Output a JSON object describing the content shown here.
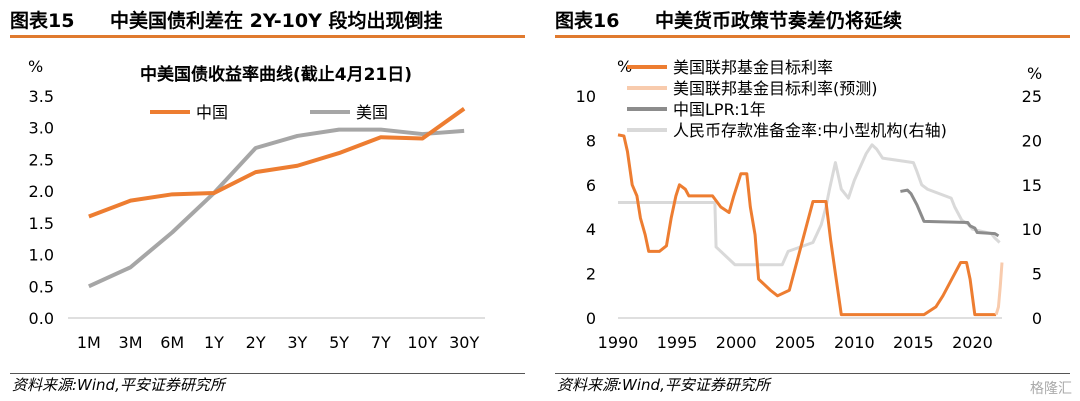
{
  "left_panel": {
    "figure_label": "图表15",
    "figure_title": "中美国债利差在 2Y-10Y 段均出现倒挂",
    "source": "资料来源:Wind,平安证券研究所"
  },
  "right_panel": {
    "figure_label": "图表16",
    "figure_title": "中美货币政策节奏差仍将延续",
    "source": "资料来源:Wind,平安证券研究所"
  },
  "watermark": "格隆汇",
  "colors": {
    "accent_orange": "#ed7d31",
    "gray": "#a6a6a6",
    "light_orange": "#f8cbad",
    "dark_gray": "#8c8c8c",
    "light_gray": "#d9d9d9"
  },
  "chart_data": [
    {
      "type": "line",
      "title": "中美国债收益率曲线(截止4月21日)",
      "ylabel": "%",
      "categories": [
        "1M",
        "3M",
        "6M",
        "1Y",
        "2Y",
        "3Y",
        "5Y",
        "7Y",
        "10Y",
        "30Y"
      ],
      "ylim": [
        0,
        3.5
      ],
      "yticks": [
        "0.0",
        "0.5",
        "1.0",
        "1.5",
        "2.0",
        "2.5",
        "3.0",
        "3.5"
      ],
      "legend_position": "top",
      "grid": false,
      "series": [
        {
          "name": "中国",
          "color": "#ed7d31",
          "values": [
            1.6,
            1.85,
            1.95,
            1.97,
            2.3,
            2.4,
            2.6,
            2.85,
            2.83,
            3.3
          ]
        },
        {
          "name": "美国",
          "color": "#a6a6a6",
          "values": [
            0.5,
            0.8,
            1.35,
            1.97,
            2.68,
            2.87,
            2.97,
            2.97,
            2.9,
            2.95
          ]
        }
      ]
    },
    {
      "type": "line",
      "ylabel_left": "%",
      "ylabel_right": "%",
      "xticks": [
        "1990",
        "1995",
        "2000",
        "2005",
        "2010",
        "2015",
        "2020"
      ],
      "xlim": [
        1990,
        2022.5
      ],
      "ylim_left": [
        0,
        10
      ],
      "yticks_left": [
        "0",
        "2",
        "4",
        "6",
        "8",
        "10"
      ],
      "ylim_right": [
        0,
        25
      ],
      "yticks_right": [
        "0",
        "5",
        "10",
        "15",
        "20",
        "25"
      ],
      "legend_position": "top-left",
      "grid": false,
      "series": [
        {
          "name": "美国联邦基金目标利率",
          "axis": "left",
          "color": "#ed7d31",
          "points": [
            [
              1990,
              8.25
            ],
            [
              1990.5,
              8.2
            ],
            [
              1990.8,
              7.5
            ],
            [
              1991.2,
              6.0
            ],
            [
              1991.6,
              5.5
            ],
            [
              1991.9,
              4.5
            ],
            [
              1992.3,
              3.75
            ],
            [
              1992.6,
              3.0
            ],
            [
              1993.5,
              3.0
            ],
            [
              1994.1,
              3.25
            ],
            [
              1994.5,
              4.5
            ],
            [
              1994.9,
              5.5
            ],
            [
              1995.2,
              6.0
            ],
            [
              1995.7,
              5.8
            ],
            [
              1996.0,
              5.5
            ],
            [
              1997.2,
              5.5
            ],
            [
              1998.0,
              5.5
            ],
            [
              1998.7,
              5.0
            ],
            [
              1999.4,
              4.75
            ],
            [
              1999.8,
              5.5
            ],
            [
              2000.4,
              6.5
            ],
            [
              2000.9,
              6.5
            ],
            [
              2001.2,
              5.0
            ],
            [
              2001.6,
              3.75
            ],
            [
              2001.9,
              1.75
            ],
            [
              2002.9,
              1.25
            ],
            [
              2003.5,
              1.0
            ],
            [
              2004.5,
              1.25
            ],
            [
              2005.0,
              2.25
            ],
            [
              2005.5,
              3.25
            ],
            [
              2006.0,
              4.25
            ],
            [
              2006.5,
              5.25
            ],
            [
              2007.6,
              5.25
            ],
            [
              2008.0,
              3.5
            ],
            [
              2008.4,
              2.0
            ],
            [
              2008.9,
              0.15
            ],
            [
              2015.9,
              0.15
            ],
            [
              2016.9,
              0.5
            ],
            [
              2017.5,
              1.0
            ],
            [
              2018.0,
              1.5
            ],
            [
              2018.5,
              2.0
            ],
            [
              2019.0,
              2.5
            ],
            [
              2019.5,
              2.5
            ],
            [
              2019.8,
              1.75
            ],
            [
              2020.2,
              0.15
            ],
            [
              2022.0,
              0.15
            ]
          ]
        },
        {
          "name": "美国联邦基金目标利率(预测)",
          "axis": "left",
          "color": "#f8cbad",
          "points": [
            [
              2022.0,
              0.15
            ],
            [
              2022.2,
              0.5
            ],
            [
              2022.35,
              1.4
            ],
            [
              2022.5,
              2.5
            ]
          ]
        },
        {
          "name": "中国LPR:1年",
          "axis": "left",
          "color": "#8c8c8c",
          "points": [
            [
              2013.9,
              5.7
            ],
            [
              2014.5,
              5.76
            ],
            [
              2014.8,
              5.6
            ],
            [
              2015.3,
              5.1
            ],
            [
              2015.7,
              4.6
            ],
            [
              2015.9,
              4.35
            ],
            [
              2019.6,
              4.3
            ],
            [
              2019.8,
              4.15
            ],
            [
              2020.2,
              4.05
            ],
            [
              2020.4,
              3.85
            ],
            [
              2021.9,
              3.8
            ],
            [
              2022.2,
              3.7
            ]
          ]
        },
        {
          "name": "人民币存款准备金率:中小型机构(右轴)",
          "axis": "right",
          "color": "#d9d9d9",
          "points": [
            [
              1990,
              13.0
            ],
            [
              1998.2,
              13.0
            ],
            [
              1998.3,
              8.0
            ],
            [
              1999.9,
              6.0
            ],
            [
              2003.9,
              6.0
            ],
            [
              2004.4,
              7.5
            ],
            [
              2006.5,
              8.5
            ],
            [
              2007.2,
              10.5
            ],
            [
              2007.6,
              12.5
            ],
            [
              2007.9,
              14.5
            ],
            [
              2008.4,
              17.5
            ],
            [
              2008.9,
              14.5
            ],
            [
              2009.5,
              13.5
            ],
            [
              2010.0,
              15.5
            ],
            [
              2010.5,
              17.0
            ],
            [
              2011.0,
              18.5
            ],
            [
              2011.5,
              19.5
            ],
            [
              2011.9,
              19.0
            ],
            [
              2012.4,
              18.0
            ],
            [
              2015.0,
              17.5
            ],
            [
              2015.3,
              16.5
            ],
            [
              2015.7,
              15.0
            ],
            [
              2016.2,
              14.5
            ],
            [
              2018.2,
              13.5
            ],
            [
              2018.5,
              12.5
            ],
            [
              2018.9,
              11.5
            ],
            [
              2019.1,
              11.0
            ],
            [
              2019.7,
              10.5
            ],
            [
              2020.0,
              10.0
            ],
            [
              2021.6,
              9.5
            ],
            [
              2021.9,
              9.0
            ],
            [
              2022.3,
              8.5
            ]
          ]
        }
      ]
    }
  ]
}
